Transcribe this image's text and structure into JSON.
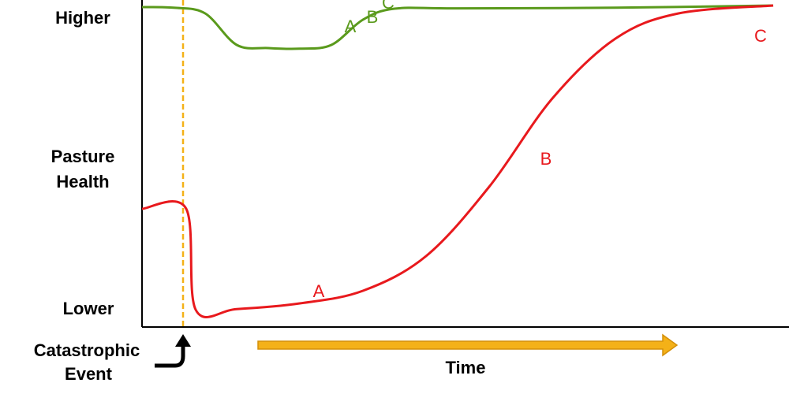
{
  "chart_data": {
    "type": "line",
    "ylabel": [
      "Pasture",
      "Health"
    ],
    "y_tick_labels": {
      "top": "Higher",
      "bottom": "Lower"
    },
    "xlabel": "Time",
    "event_label": [
      "Catastrophic",
      "Event"
    ],
    "xlim": [
      0,
      100
    ],
    "ylim": [
      0,
      100
    ],
    "event_x": 6.5,
    "grid": false,
    "colors": {
      "event_line": "#f4b118",
      "time_arrow": "#f4b118",
      "time_arrow_edge": "#d4900a",
      "axis": "#000000"
    },
    "series": [
      {
        "color": "#5a9a1c",
        "points": [
          [
            0,
            99
          ],
          [
            5,
            98.8
          ],
          [
            10,
            97
          ],
          [
            15,
            87
          ],
          [
            20,
            86
          ],
          [
            25,
            85.8
          ],
          [
            30,
            87
          ],
          [
            35,
            95
          ],
          [
            40,
            98.5
          ],
          [
            50,
            98.6
          ],
          [
            75,
            98.8
          ],
          [
            100,
            99.5
          ]
        ],
        "point_labels": [
          {
            "text": "A",
            "x": 33,
            "y": 91
          },
          {
            "text": "B",
            "x": 36.5,
            "y": 94
          },
          {
            "text": "C",
            "x": 39,
            "y": 98.5
          }
        ]
      },
      {
        "color": "#e8191d",
        "points": [
          [
            0,
            35
          ],
          [
            7,
            35
          ],
          [
            8.5,
            3
          ],
          [
            15,
            3.2
          ],
          [
            25,
            5
          ],
          [
            35,
            9
          ],
          [
            45,
            20
          ],
          [
            55,
            42
          ],
          [
            65,
            70
          ],
          [
            75,
            89
          ],
          [
            85,
            97
          ],
          [
            100,
            99.5
          ]
        ],
        "point_labels": [
          {
            "text": "A",
            "x": 28,
            "y": 7
          },
          {
            "text": "B",
            "x": 64,
            "y": 49
          },
          {
            "text": "C",
            "x": 98,
            "y": 88
          }
        ]
      }
    ]
  }
}
